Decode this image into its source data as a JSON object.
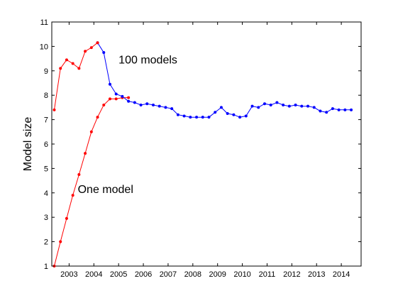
{
  "chart_data": {
    "type": "line",
    "title": "",
    "xlabel": "",
    "ylabel": "Model size",
    "xlim": [
      2002.3,
      2014.8
    ],
    "ylim": [
      1,
      11
    ],
    "xticks": [
      2003,
      2004,
      2005,
      2006,
      2007,
      2008,
      2009,
      2010,
      2011,
      2012,
      2013,
      2014
    ],
    "yticks": [
      1,
      2,
      3,
      4,
      5,
      6,
      7,
      8,
      9,
      10,
      11
    ],
    "grid": false,
    "series": [
      {
        "name": "One model",
        "color": "#ff0000",
        "marker": "dot",
        "x": [
          2002.4,
          2002.65,
          2002.9,
          2003.15,
          2003.4,
          2003.65,
          2003.9,
          2004.15,
          2004.4,
          2004.65,
          2004.9,
          2005.15,
          2005.4
        ],
        "y": [
          1.0,
          2.0,
          2.95,
          3.9,
          4.75,
          5.62,
          6.5,
          7.1,
          7.6,
          7.85,
          7.85,
          7.9,
          7.9
        ]
      },
      {
        "name": "100 models",
        "color": "#0000ff",
        "marker": "dot",
        "x": [
          2004.15,
          2004.4,
          2004.65,
          2004.9,
          2005.15,
          2005.4,
          2005.65,
          2005.9,
          2006.15,
          2006.4,
          2006.65,
          2006.9,
          2007.15,
          2007.4,
          2007.65,
          2007.9,
          2008.15,
          2008.4,
          2008.65,
          2008.9,
          2009.15,
          2009.4,
          2009.65,
          2009.9,
          2010.15,
          2010.4,
          2010.65,
          2010.9,
          2011.15,
          2011.4,
          2011.65,
          2011.9,
          2012.15,
          2012.4,
          2012.65,
          2012.9,
          2013.15,
          2013.4,
          2013.65,
          2013.9,
          2014.15,
          2014.4
        ],
        "y": [
          10.15,
          9.75,
          8.45,
          8.05,
          7.95,
          7.75,
          7.7,
          7.6,
          7.65,
          7.6,
          7.55,
          7.5,
          7.45,
          7.2,
          7.15,
          7.1,
          7.1,
          7.1,
          7.1,
          7.3,
          7.5,
          7.25,
          7.2,
          7.1,
          7.15,
          7.55,
          7.5,
          7.65,
          7.6,
          7.7,
          7.6,
          7.55,
          7.6,
          7.55,
          7.55,
          7.5,
          7.35,
          7.3,
          7.45,
          7.4,
          7.4,
          7.4
        ]
      },
      {
        "name": "",
        "color": "#ff0000",
        "marker": "dot",
        "x": [
          2002.4,
          2002.65,
          2002.9,
          2003.15,
          2003.4,
          2003.65,
          2003.9,
          2004.15
        ],
        "y": [
          7.4,
          9.1,
          9.45,
          9.3,
          9.1,
          9.8,
          9.95,
          10.15
        ]
      }
    ],
    "annotations": [
      {
        "text": "100 models",
        "x": 2005.0,
        "y": 9.3
      },
      {
        "text": "One model",
        "x": 2003.35,
        "y": 4.0
      }
    ]
  }
}
